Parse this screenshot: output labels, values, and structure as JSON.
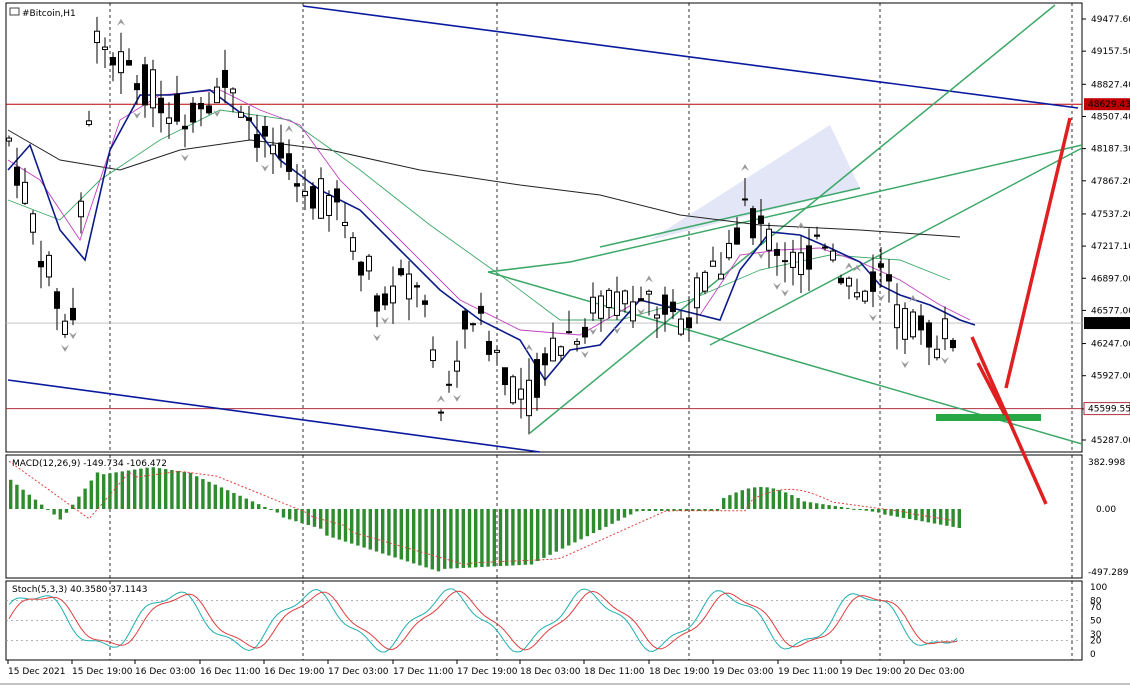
{
  "chart": {
    "title": "#Bitcoin,H1",
    "symbol_icon": "chart-symbol-icon",
    "price_ticks": [
      "49477.60",
      "49157.50",
      "48827.40",
      "48507.40",
      "48187.30",
      "47867.20",
      "47537.20",
      "47217.10",
      "46897.00",
      "46577.00",
      "46247.00",
      "45927.00",
      "45597.00",
      "45287.00"
    ],
    "current_price": "46451.08",
    "resistance_label": "48629.43",
    "support_label": "45599.55",
    "colors": {
      "resistance": "#c00000",
      "support": "#b03040",
      "bull_candle": "#ffffff",
      "bear_candle": "#000000",
      "channel_blue": "#0a1aa0",
      "channel_green": "#3ca868",
      "prediction_red": "#e02020",
      "macd_hist": "#2e8b2e",
      "signal": "#e04040",
      "stoch_main": "#20b0b0",
      "stoch_signal": "#e04040"
    }
  },
  "macd": {
    "label": "MACD(12,26,9) -149.734 -106.472",
    "ticks": [
      "382.998",
      "0.00",
      "-497.289"
    ]
  },
  "stoch": {
    "label": "Stoch(5,3,3) 40.3580 37.1143",
    "ticks": [
      "100",
      "80",
      "70",
      "50",
      "30",
      "20",
      "0"
    ]
  },
  "time_axis": [
    "15 Dec 2021",
    "15 Dec 19:00",
    "16 Dec 03:00",
    "16 Dec 11:00",
    "16 Dec 19:00",
    "17 Dec 03:00",
    "17 Dec 11:00",
    "17 Dec 19:00",
    "18 Dec 03:00",
    "18 Dec 11:00",
    "18 Dec 19:00",
    "19 Dec 03:00",
    "19 Dec 11:00",
    "19 Dec 19:00",
    "20 Dec 03:00"
  ],
  "chart_data": {
    "type": "candlestick",
    "title": "#Bitcoin,H1",
    "ylim": [
      45287,
      49477.6
    ],
    "x": [
      "15 Dec 2021",
      "15 Dec 19:00",
      "16 Dec 03:00",
      "16 Dec 11:00",
      "16 Dec 19:00",
      "17 Dec 03:00",
      "17 Dec 11:00",
      "17 Dec 19:00",
      "18 Dec 03:00",
      "18 Dec 11:00",
      "18 Dec 19:00",
      "19 Dec 03:00",
      "19 Dec 11:00",
      "19 Dec 19:00",
      "20 Dec 03:00"
    ],
    "close_approx": [
      48300,
      47700,
      49000,
      48650,
      47900,
      47450,
      46700,
      46400,
      45900,
      46300,
      46600,
      47400,
      47200,
      46800,
      46451
    ],
    "levels": {
      "resistance": 48629.43,
      "support": 45599.55,
      "last": 46451.08
    }
  }
}
